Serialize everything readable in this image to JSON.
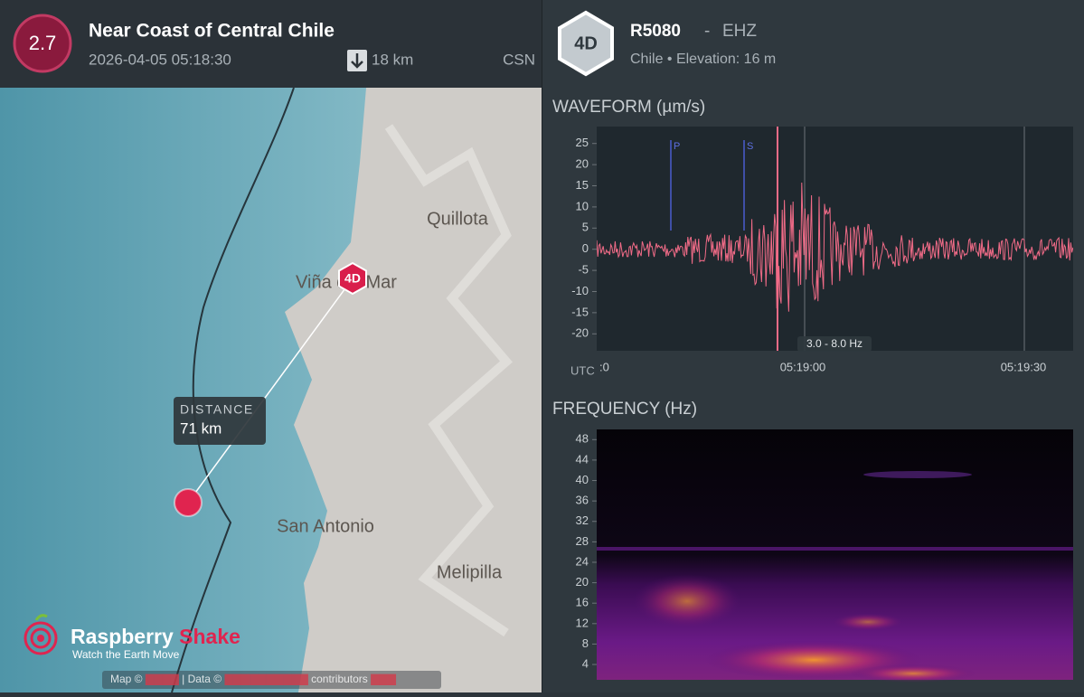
{
  "event": {
    "magnitude": "2.7",
    "title": "Near Coast of Central Chile",
    "datetime": "2026-04-05 05:18:30",
    "depth": "18 km",
    "source": "CSN"
  },
  "map": {
    "labels": [
      "Quillota",
      "Viña del Mar",
      "San Antonio",
      "Melipilla"
    ],
    "station": "4D",
    "distance": {
      "label": "DISTANCE",
      "value": "71 km"
    },
    "logo": {
      "name": "Raspberry",
      "name_accent": "Shake",
      "tagline": "Watch the Earth Move"
    },
    "attribution": [
      "Map ©",
      "| Data ©",
      "contributors"
    ]
  },
  "station": {
    "badge": "4D",
    "code": "R5080",
    "separator": "-",
    "channel": "EHZ",
    "location": "Chile • Elevation: 16 m"
  },
  "waveform": {
    "title": "WAVEFORM (µm/s)",
    "ylim": [
      -24,
      29
    ],
    "yticks": [
      25,
      20,
      15,
      10,
      5,
      0,
      -5,
      -10,
      -15,
      -20
    ],
    "x_axis_label": "UTC",
    "xticks": [
      ":0",
      "05:19:00",
      "05:19:30"
    ],
    "phases": [
      "P",
      "S"
    ],
    "filter": "3.0 - 8.0 Hz"
  },
  "frequency": {
    "title": "FREQUENCY (Hz)",
    "ylim": [
      1,
      50
    ],
    "yticks": [
      4,
      8,
      12,
      16,
      20,
      24,
      28,
      32,
      36,
      40,
      44,
      48
    ]
  }
}
